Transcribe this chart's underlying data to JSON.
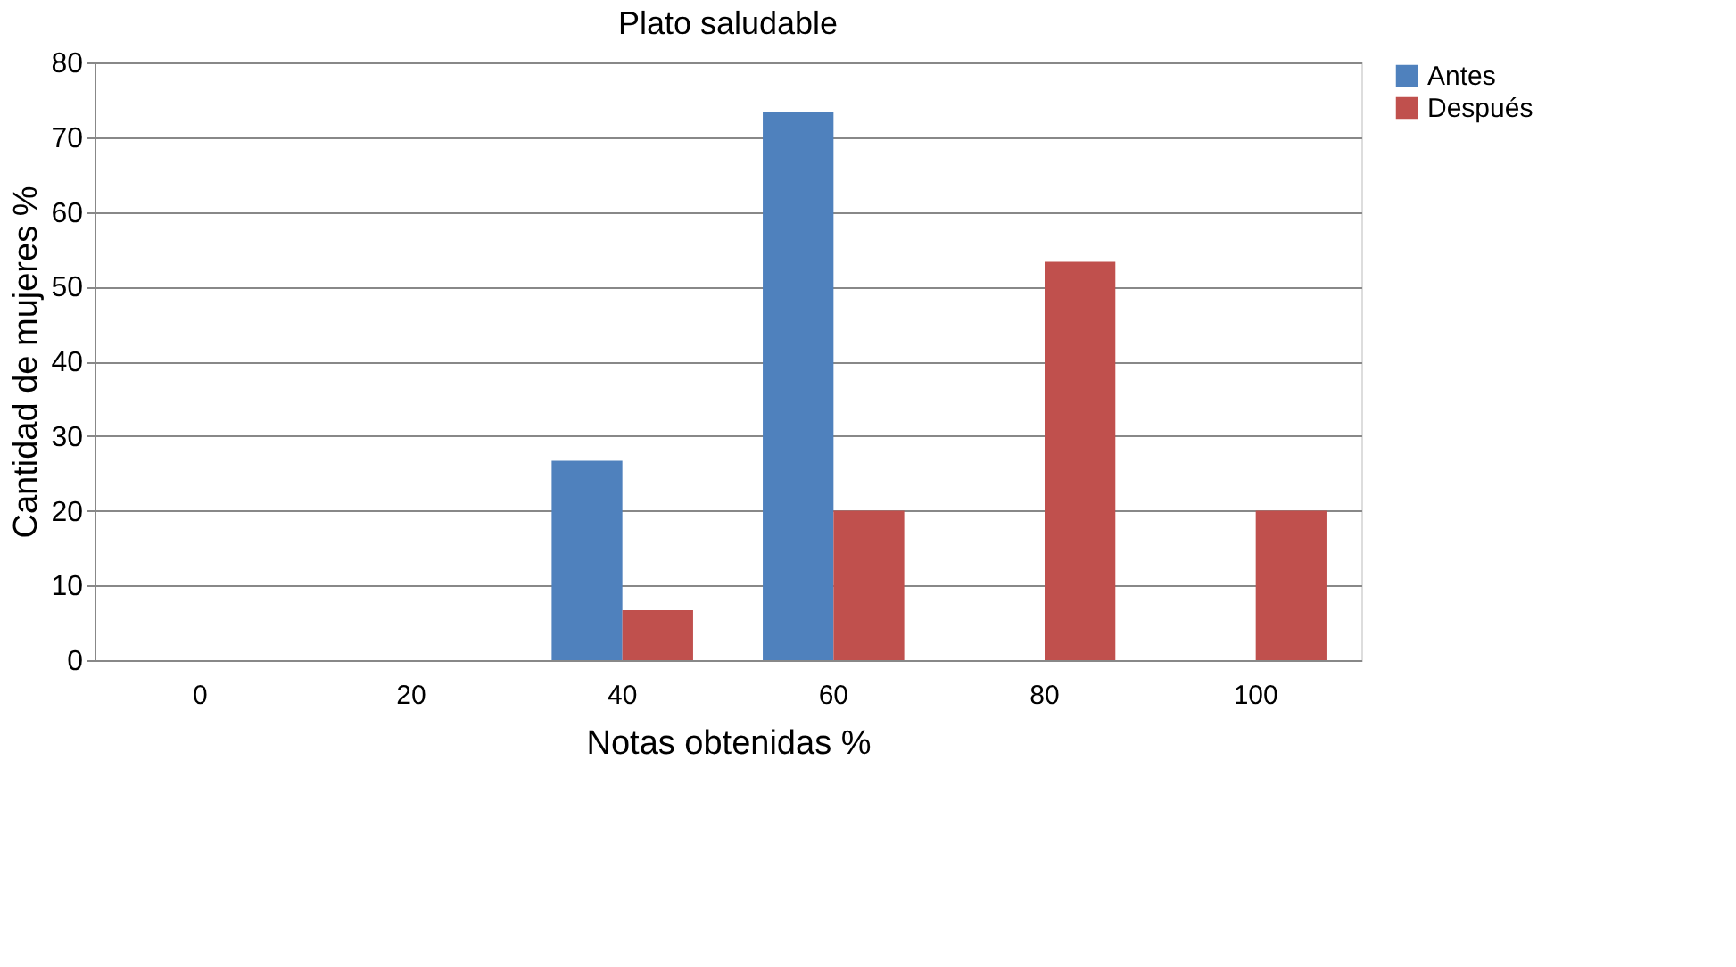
{
  "chart_data": {
    "type": "bar",
    "title": "Plato saludable",
    "xlabel": "Notas obtenidas %",
    "ylabel": "Cantidad de mujeres %",
    "categories": [
      "0",
      "20",
      "40",
      "60",
      "80",
      "100"
    ],
    "series": [
      {
        "name": "Antes",
        "color": "#4f81bd",
        "values": [
          0,
          0,
          26.7,
          73.3,
          0,
          0
        ]
      },
      {
        "name": "Después",
        "color": "#c0504d",
        "values": [
          0,
          0,
          6.7,
          20,
          53.3,
          20
        ]
      }
    ],
    "ylim": [
      0,
      80
    ],
    "yticks": [
      0,
      10,
      20,
      30,
      40,
      50,
      60,
      70,
      80
    ],
    "grid": "y",
    "legend": "right"
  }
}
